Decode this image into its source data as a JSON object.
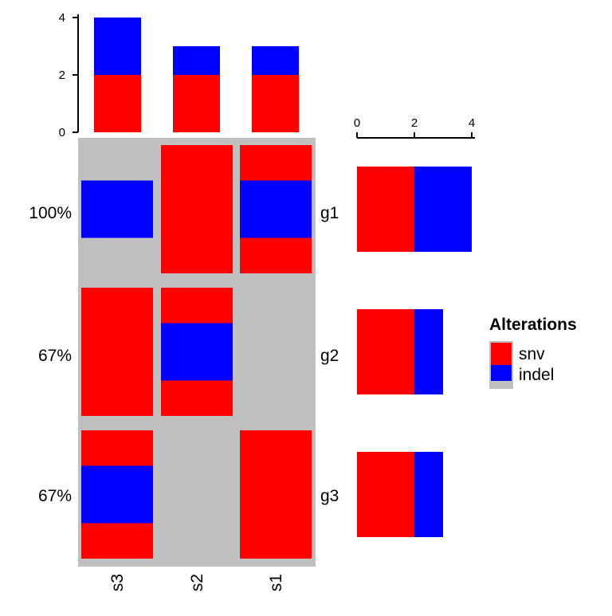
{
  "chart_data": {
    "type": "oncoprint",
    "samples": [
      "s3",
      "s2",
      "s1"
    ],
    "genes": [
      "g1",
      "g2",
      "g3"
    ],
    "percentages": [
      "100%",
      "67%",
      "67%"
    ],
    "alteration_types": [
      "snv",
      "indel"
    ],
    "colors": {
      "snv": "#ff0000",
      "indel": "#0000ff",
      "background": "#c0c0c0"
    },
    "cells": [
      [
        "indel",
        "snv",
        "snv;indel"
      ],
      [
        "snv",
        "snv;indel",
        ""
      ],
      [
        "snv;indel",
        "",
        "snv"
      ]
    ],
    "top_barplot": {
      "type": "bar",
      "stacked": true,
      "categories": [
        "s3",
        "s2",
        "s1"
      ],
      "series": [
        {
          "name": "snv",
          "values": [
            2,
            2,
            2
          ]
        },
        {
          "name": "indel",
          "values": [
            2,
            1,
            1
          ]
        }
      ],
      "ylim": [
        0,
        4
      ],
      "yticks": [
        "0",
        "2",
        "4"
      ]
    },
    "right_barplot": {
      "type": "bar",
      "orientation": "horizontal",
      "stacked": true,
      "categories": [
        "g1",
        "g2",
        "g3"
      ],
      "series": [
        {
          "name": "snv",
          "values": [
            2,
            2,
            2
          ]
        },
        {
          "name": "indel",
          "values": [
            2,
            1,
            1
          ]
        }
      ],
      "xlim": [
        0,
        4
      ],
      "xticks": [
        "0",
        "2",
        "4"
      ]
    },
    "legend": {
      "title": "Alterations",
      "items": [
        "snv",
        "indel"
      ]
    }
  }
}
